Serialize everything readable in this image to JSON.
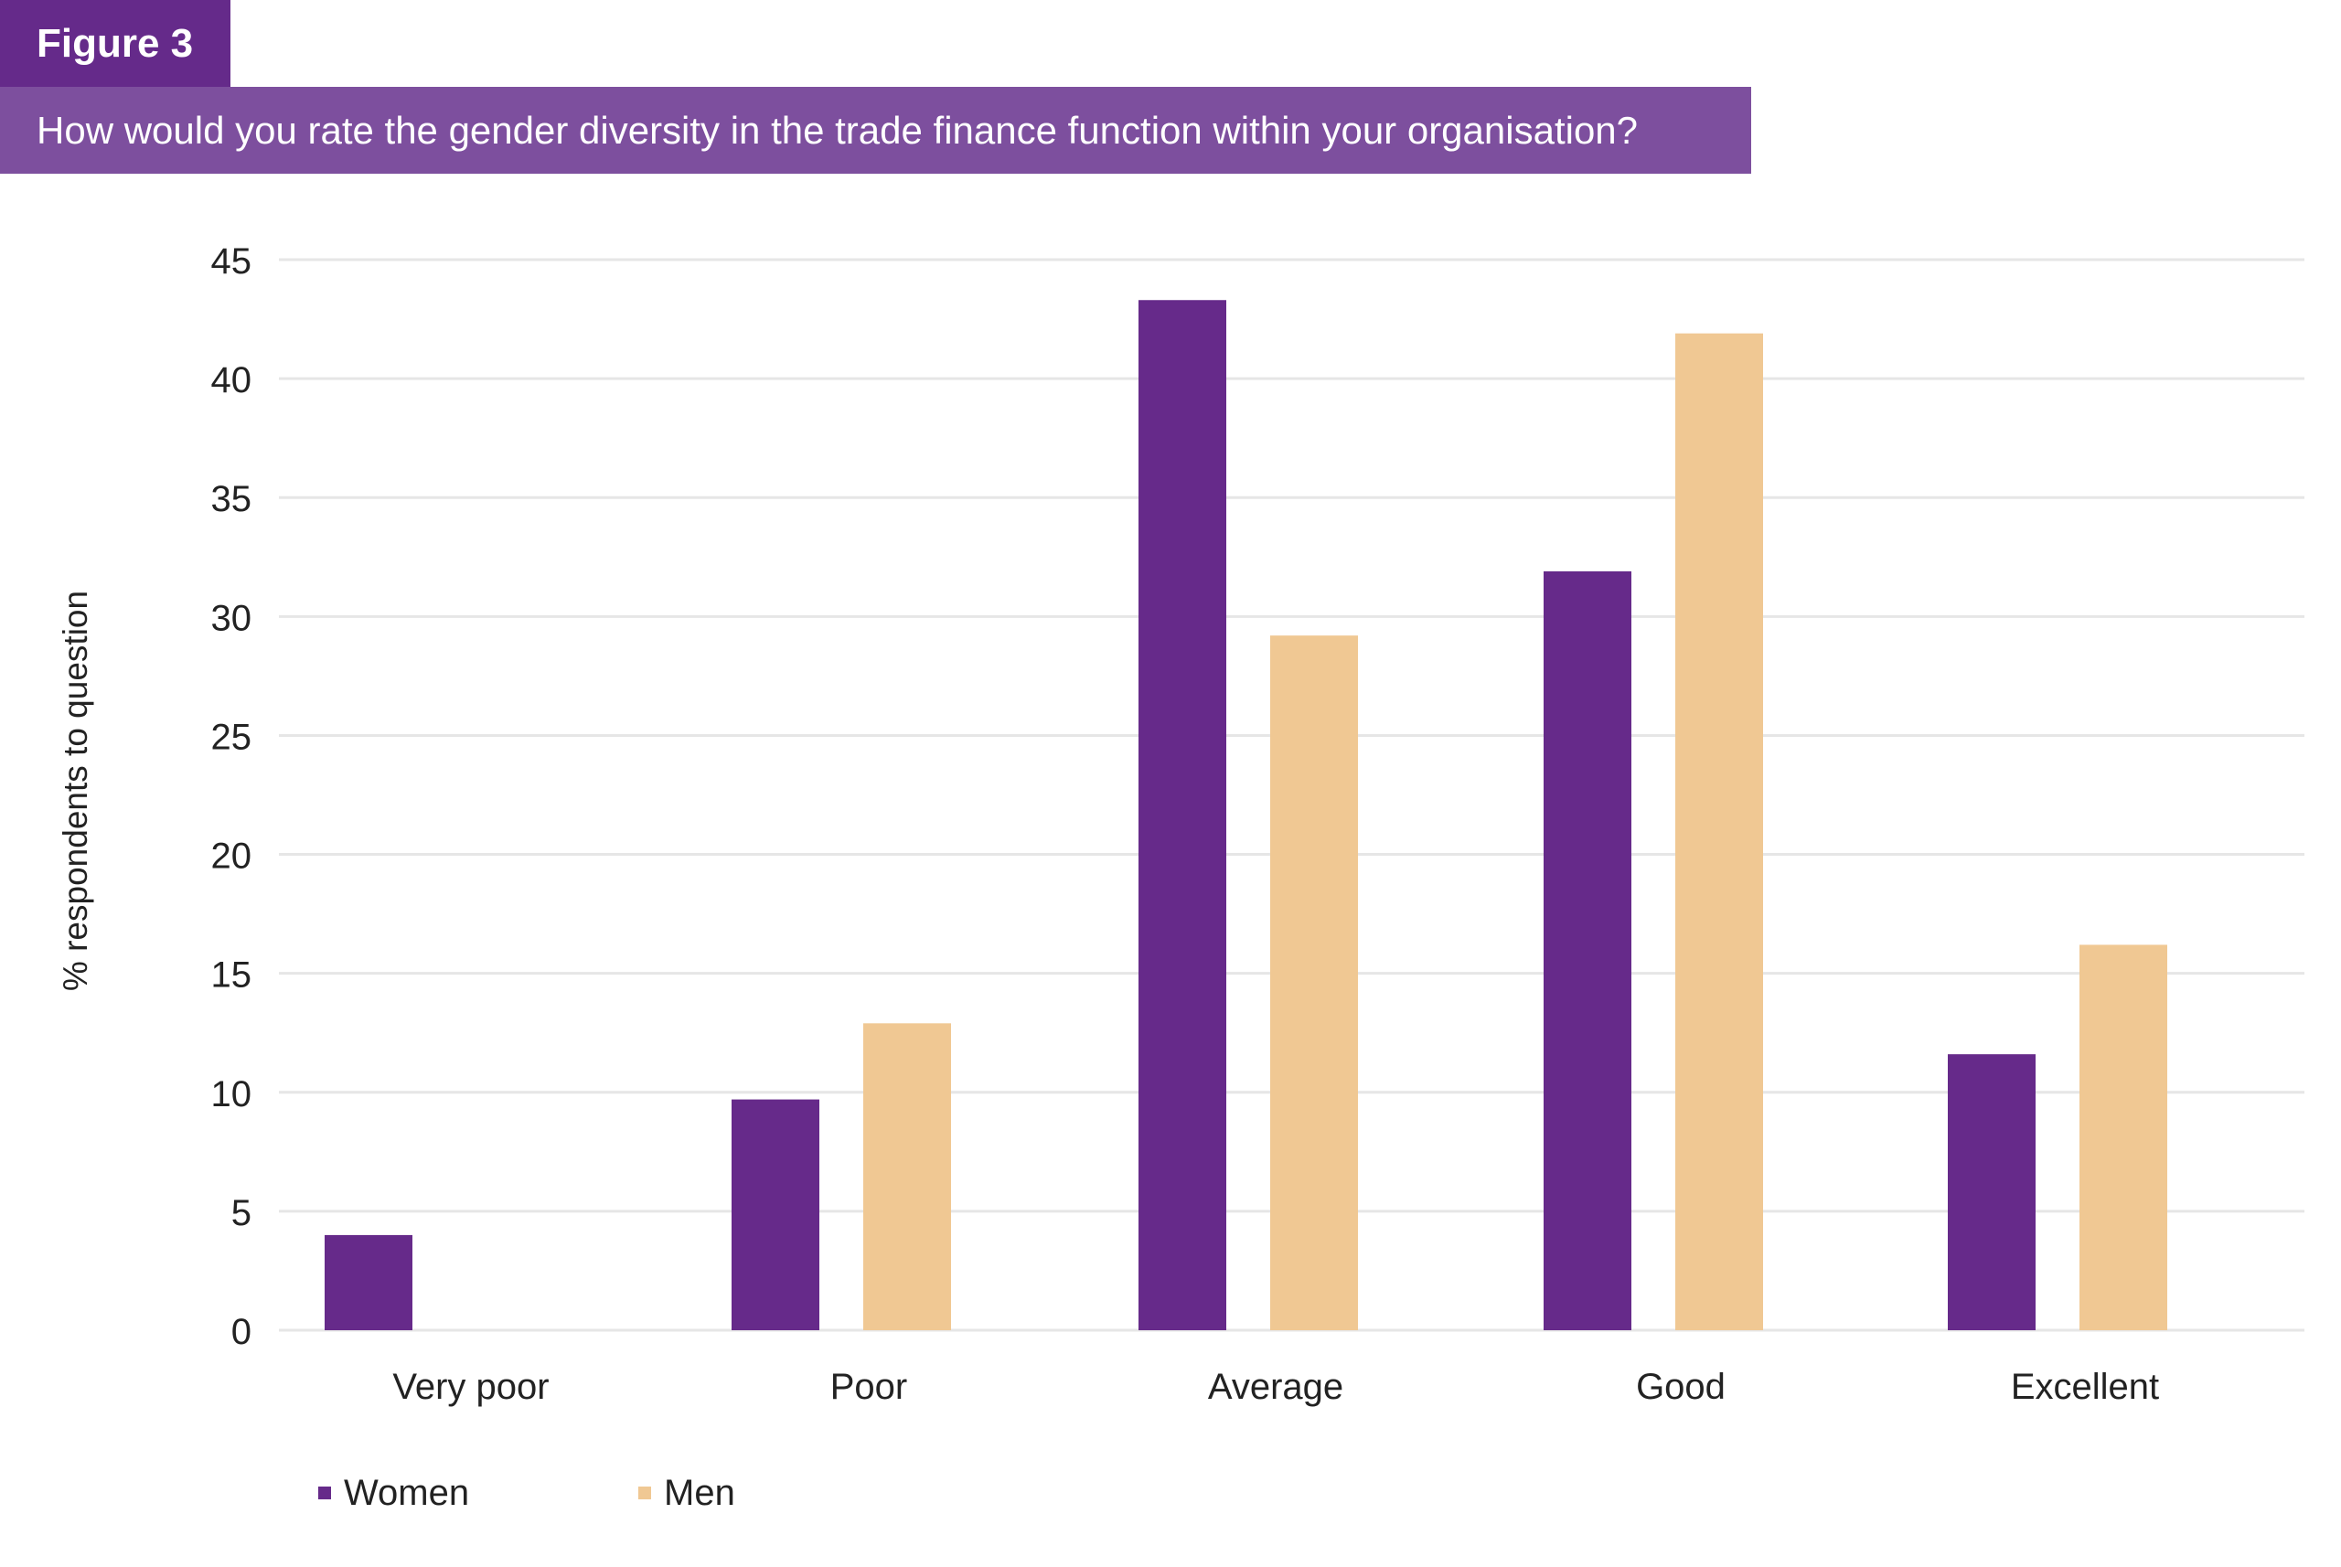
{
  "figure_label": "Figure 3",
  "question": "How would you rate the gender diversity in the trade finance function within your organisation?",
  "colors": {
    "header_dark": "#652a8a",
    "header_light": "#7d4f9e",
    "women": "#662a8a",
    "men": "#f0c893",
    "grid": "#e6e6e6"
  },
  "chart_data": {
    "type": "bar",
    "title": "How would you rate the gender diversity in the trade finance function within your organisation?",
    "xlabel": "",
    "ylabel": "% respondents to question",
    "ylim": [
      0,
      45
    ],
    "yticks": [
      0,
      5,
      10,
      15,
      20,
      25,
      30,
      35,
      40,
      45
    ],
    "grid": true,
    "legend_position": "bottom-left",
    "categories": [
      "Very poor",
      "Poor",
      "Average",
      "Good",
      "Excellent"
    ],
    "series": [
      {
        "name": "Women",
        "color": "#662a8a",
        "values": [
          4.0,
          9.7,
          43.3,
          31.9,
          11.6
        ]
      },
      {
        "name": "Men",
        "color": "#f0c893",
        "values": [
          0,
          12.9,
          29.2,
          41.9,
          16.2
        ]
      }
    ]
  }
}
